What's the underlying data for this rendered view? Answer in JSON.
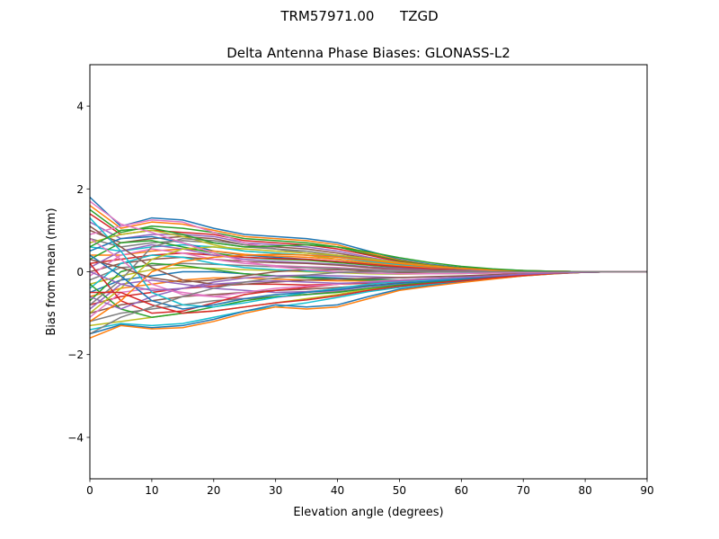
{
  "figure": {
    "suptitle_station": "TRM57971.00",
    "suptitle_site": "TZGD"
  },
  "chart_data": {
    "type": "line",
    "title": "Delta Antenna Phase Biases: GLONASS-L2",
    "xlabel": "Elevation angle (degrees)",
    "ylabel": "Bias from mean (mm)",
    "xlim": [
      0,
      90
    ],
    "ylim": [
      -5,
      5
    ],
    "xticks": [
      0,
      10,
      20,
      30,
      40,
      50,
      60,
      70,
      80,
      90
    ],
    "yticks": [
      -4,
      -2,
      0,
      2,
      4
    ],
    "ytick_labels": [
      "−4",
      "−2",
      "0",
      "2",
      "4"
    ],
    "grid": false,
    "x": [
      0,
      5,
      10,
      15,
      20,
      25,
      30,
      35,
      40,
      45,
      50,
      55,
      60,
      65,
      70,
      75,
      80,
      85,
      90
    ],
    "colors": [
      "#1f77b4",
      "#ff7f0e",
      "#2ca02c",
      "#d62728",
      "#9467bd",
      "#8c564b",
      "#e377c2",
      "#7f7f7f",
      "#bcbd22",
      "#17becf"
    ],
    "series": [
      {
        "values": [
          1.8,
          1.1,
          1.3,
          1.25,
          1.05,
          0.9,
          0.85,
          0.8,
          0.7,
          0.5,
          0.3,
          0.18,
          0.1,
          0.06,
          0.03,
          0.01,
          0.0,
          0.0,
          0.0
        ]
      },
      {
        "values": [
          1.6,
          1.05,
          1.2,
          1.15,
          1.0,
          0.85,
          0.8,
          0.75,
          0.65,
          0.45,
          0.28,
          0.16,
          0.09,
          0.05,
          0.03,
          0.01,
          0.0,
          0.0,
          0.0
        ]
      },
      {
        "values": [
          1.5,
          0.95,
          1.1,
          1.05,
          0.95,
          0.8,
          0.75,
          0.7,
          0.6,
          0.42,
          0.26,
          0.15,
          0.09,
          0.05,
          0.02,
          0.01,
          0.0,
          0.0,
          0.0
        ]
      },
      {
        "values": [
          1.4,
          0.9,
          1.0,
          0.95,
          0.9,
          0.75,
          0.7,
          0.65,
          0.55,
          0.4,
          0.24,
          0.14,
          0.08,
          0.04,
          0.02,
          0.01,
          0.0,
          0.0,
          0.0
        ]
      },
      {
        "values": [
          1.2,
          0.8,
          0.9,
          0.9,
          0.85,
          0.7,
          0.65,
          0.6,
          0.5,
          0.35,
          0.22,
          0.13,
          0.07,
          0.04,
          0.02,
          0.01,
          0.0,
          0.0,
          0.0
        ]
      },
      {
        "values": [
          1.0,
          0.7,
          0.8,
          0.85,
          0.8,
          0.65,
          0.6,
          0.55,
          0.45,
          0.32,
          0.2,
          0.12,
          0.07,
          0.04,
          0.02,
          0.01,
          0.0,
          0.0,
          0.0
        ]
      },
      {
        "values": [
          0.9,
          1.1,
          1.25,
          1.2,
          0.95,
          0.7,
          0.55,
          0.45,
          0.35,
          0.25,
          0.15,
          0.09,
          0.05,
          0.03,
          0.02,
          0.01,
          0.0,
          0.0,
          0.0
        ]
      },
      {
        "values": [
          0.8,
          0.6,
          0.7,
          0.75,
          0.7,
          0.6,
          0.55,
          0.5,
          0.4,
          0.28,
          0.18,
          0.11,
          0.06,
          0.04,
          0.02,
          0.01,
          0.0,
          0.0,
          0.0
        ]
      },
      {
        "values": [
          0.7,
          0.9,
          1.0,
          0.85,
          0.65,
          0.5,
          0.45,
          0.4,
          0.3,
          0.2,
          0.13,
          0.08,
          0.05,
          0.03,
          0.01,
          0.01,
          0.0,
          0.0,
          0.0
        ]
      },
      {
        "values": [
          0.6,
          0.5,
          0.6,
          0.65,
          0.6,
          0.5,
          0.45,
          0.4,
          0.35,
          0.25,
          0.16,
          0.1,
          0.06,
          0.03,
          0.02,
          0.01,
          0.0,
          0.0,
          0.0
        ]
      },
      {
        "values": [
          0.5,
          0.8,
          0.85,
          0.7,
          0.5,
          0.4,
          0.35,
          0.3,
          0.25,
          0.18,
          0.12,
          0.07,
          0.04,
          0.02,
          0.01,
          0.0,
          0.0,
          0.0,
          0.0
        ]
      },
      {
        "values": [
          0.4,
          0.4,
          0.5,
          0.55,
          0.5,
          0.42,
          0.38,
          0.35,
          0.3,
          0.22,
          0.14,
          0.09,
          0.05,
          0.03,
          0.02,
          0.01,
          0.0,
          0.0,
          0.0
        ]
      },
      {
        "values": [
          0.3,
          0.7,
          0.75,
          0.6,
          0.45,
          0.35,
          0.3,
          0.28,
          0.22,
          0.16,
          0.1,
          0.06,
          0.04,
          0.02,
          0.01,
          0.0,
          0.0,
          0.0,
          0.0
        ]
      },
      {
        "values": [
          0.2,
          0.3,
          0.4,
          0.45,
          0.4,
          0.35,
          0.32,
          0.3,
          0.25,
          0.18,
          0.12,
          0.07,
          0.04,
          0.02,
          0.01,
          0.0,
          0.0,
          0.0,
          0.0
        ]
      },
      {
        "values": [
          0.1,
          0.5,
          0.65,
          0.55,
          0.4,
          0.3,
          0.25,
          0.22,
          0.18,
          0.12,
          0.08,
          0.05,
          0.03,
          0.02,
          0.01,
          0.0,
          0.0,
          0.0,
          0.0
        ]
      },
      {
        "values": [
          0.0,
          0.2,
          0.3,
          0.35,
          0.3,
          0.25,
          0.22,
          0.2,
          0.16,
          0.1,
          0.06,
          0.04,
          0.02,
          0.01,
          0.01,
          0.0,
          0.0,
          0.0,
          0.0
        ]
      },
      {
        "values": [
          -0.1,
          0.4,
          0.55,
          0.45,
          0.3,
          0.2,
          0.15,
          0.12,
          0.1,
          0.06,
          0.04,
          0.02,
          0.01,
          0.01,
          0.0,
          0.0,
          0.0,
          0.0,
          0.0
        ]
      },
      {
        "values": [
          -0.2,
          0.1,
          0.15,
          0.2,
          0.18,
          0.15,
          0.12,
          0.1,
          0.08,
          0.05,
          0.03,
          0.02,
          0.01,
          0.0,
          0.0,
          0.0,
          0.0,
          0.0,
          0.0
        ]
      },
      {
        "values": [
          -0.3,
          -0.1,
          0.05,
          0.1,
          0.08,
          0.05,
          0.03,
          0.0,
          -0.02,
          -0.05,
          -0.06,
          -0.05,
          -0.04,
          -0.03,
          -0.02,
          -0.01,
          0.0,
          0.0,
          0.0
        ]
      },
      {
        "values": [
          -0.4,
          0.2,
          0.4,
          0.35,
          0.2,
          0.1,
          0.05,
          0.02,
          0.0,
          -0.03,
          -0.05,
          -0.04,
          -0.03,
          -0.02,
          -0.01,
          0.0,
          0.0,
          0.0,
          0.0
        ]
      },
      {
        "values": [
          -0.5,
          -0.2,
          -0.1,
          0.0,
          0.0,
          -0.05,
          -0.1,
          -0.12,
          -0.15,
          -0.18,
          -0.2,
          -0.18,
          -0.15,
          -0.1,
          -0.06,
          -0.03,
          -0.01,
          0.0,
          0.0
        ]
      },
      {
        "values": [
          -0.6,
          -0.4,
          -0.3,
          -0.2,
          -0.15,
          -0.15,
          -0.18,
          -0.2,
          -0.22,
          -0.22,
          -0.22,
          -0.2,
          -0.16,
          -0.11,
          -0.07,
          -0.03,
          -0.01,
          0.0,
          0.0
        ]
      },
      {
        "values": [
          -0.7,
          0.0,
          0.2,
          0.15,
          0.05,
          -0.05,
          -0.1,
          -0.15,
          -0.18,
          -0.2,
          -0.2,
          -0.18,
          -0.14,
          -0.1,
          -0.06,
          -0.03,
          -0.01,
          0.0,
          0.0
        ]
      },
      {
        "values": [
          -0.8,
          -0.6,
          -0.5,
          -0.4,
          -0.35,
          -0.3,
          -0.3,
          -0.32,
          -0.3,
          -0.28,
          -0.26,
          -0.24,
          -0.2,
          -0.14,
          -0.08,
          -0.04,
          -0.01,
          0.0,
          0.0
        ]
      },
      {
        "values": [
          -0.9,
          -0.3,
          -0.2,
          -0.3,
          -0.4,
          -0.45,
          -0.5,
          -0.48,
          -0.42,
          -0.35,
          -0.3,
          -0.26,
          -0.22,
          -0.15,
          -0.09,
          -0.04,
          -0.01,
          0.0,
          0.0
        ]
      },
      {
        "values": [
          -1.0,
          -0.8,
          -0.7,
          -0.6,
          -0.55,
          -0.5,
          -0.45,
          -0.42,
          -0.38,
          -0.33,
          -0.28,
          -0.24,
          -0.2,
          -0.14,
          -0.08,
          -0.04,
          -0.01,
          0.0,
          0.0
        ]
      },
      {
        "values": [
          -1.1,
          -0.5,
          -0.4,
          -0.5,
          -0.6,
          -0.65,
          -0.62,
          -0.55,
          -0.45,
          -0.36,
          -0.3,
          -0.25,
          -0.2,
          -0.14,
          -0.08,
          -0.04,
          -0.01,
          0.0,
          0.0
        ]
      },
      {
        "values": [
          -1.2,
          -1.0,
          -0.9,
          -0.8,
          -0.7,
          -0.65,
          -0.6,
          -0.55,
          -0.48,
          -0.4,
          -0.32,
          -0.26,
          -0.21,
          -0.15,
          -0.09,
          -0.04,
          -0.01,
          0.0,
          0.0
        ]
      },
      {
        "values": [
          -1.3,
          -1.2,
          -1.1,
          -1.0,
          -0.95,
          -0.85,
          -0.75,
          -0.65,
          -0.55,
          -0.42,
          -0.34,
          -0.27,
          -0.21,
          -0.15,
          -0.09,
          -0.04,
          -0.01,
          0.0,
          0.0
        ]
      },
      {
        "values": [
          -1.4,
          -1.25,
          -1.3,
          -1.25,
          -1.1,
          -0.95,
          -0.85,
          -0.75,
          -0.62,
          -0.48,
          -0.38,
          -0.3,
          -0.23,
          -0.16,
          -0.09,
          -0.04,
          -0.01,
          0.0,
          0.0
        ]
      },
      {
        "values": [
          -1.5,
          -1.28,
          -1.35,
          -1.3,
          -1.15,
          -0.95,
          -0.8,
          -0.85,
          -0.8,
          -0.6,
          -0.42,
          -0.33,
          -0.25,
          -0.17,
          -0.1,
          -0.05,
          -0.01,
          0.0,
          0.0
        ]
      },
      {
        "values": [
          -1.6,
          -1.3,
          -1.38,
          -1.35,
          -1.2,
          -1.0,
          -0.85,
          -0.9,
          -0.85,
          -0.65,
          -0.45,
          -0.35,
          -0.26,
          -0.18,
          -0.1,
          -0.05,
          -0.01,
          0.0,
          0.0
        ]
      },
      {
        "values": [
          -0.3,
          -0.9,
          -1.1,
          -1.0,
          -0.85,
          -0.7,
          -0.6,
          -0.55,
          -0.5,
          -0.4,
          -0.32,
          -0.26,
          -0.2,
          -0.14,
          -0.08,
          -0.04,
          -0.01,
          0.0,
          0.0
        ]
      },
      {
        "values": [
          0.2,
          -0.7,
          -1.0,
          -0.95,
          -0.75,
          -0.55,
          -0.45,
          -0.38,
          -0.3,
          -0.25,
          -0.22,
          -0.19,
          -0.16,
          -0.11,
          -0.06,
          -0.03,
          -0.01,
          0.0,
          0.0
        ]
      },
      {
        "values": [
          -0.6,
          -0.9,
          -0.6,
          -0.4,
          -0.25,
          -0.15,
          -0.1,
          -0.08,
          -0.1,
          -0.12,
          -0.14,
          -0.13,
          -0.11,
          -0.08,
          -0.05,
          -0.02,
          -0.01,
          0.0,
          0.0
        ]
      },
      {
        "values": [
          1.1,
          0.6,
          0.1,
          -0.2,
          -0.3,
          -0.3,
          -0.25,
          -0.2,
          -0.18,
          -0.16,
          -0.14,
          -0.12,
          -0.1,
          -0.07,
          -0.04,
          -0.02,
          -0.01,
          0.0,
          0.0
        ]
      },
      {
        "values": [
          0.8,
          0.3,
          -0.3,
          -0.55,
          -0.6,
          -0.5,
          -0.4,
          -0.35,
          -0.3,
          -0.24,
          -0.2,
          -0.17,
          -0.14,
          -0.1,
          -0.06,
          -0.03,
          -0.01,
          0.0,
          0.0
        ]
      },
      {
        "values": [
          -0.8,
          -0.2,
          0.6,
          0.8,
          0.75,
          0.65,
          0.55,
          0.45,
          0.38,
          0.3,
          0.2,
          0.12,
          0.07,
          0.04,
          0.02,
          0.01,
          0.0,
          0.0,
          0.0
        ]
      },
      {
        "values": [
          -1.0,
          -0.4,
          0.3,
          0.55,
          0.6,
          0.55,
          0.5,
          0.45,
          0.4,
          0.32,
          0.22,
          0.14,
          0.08,
          0.04,
          0.02,
          0.01,
          0.0,
          0.0,
          0.0
        ]
      },
      {
        "values": [
          1.3,
          0.5,
          -0.5,
          -0.8,
          -0.85,
          -0.75,
          -0.62,
          -0.5,
          -0.4,
          -0.3,
          -0.24,
          -0.2,
          -0.16,
          -0.11,
          -0.06,
          -0.03,
          -0.01,
          0.0,
          0.0
        ]
      },
      {
        "values": [
          0.4,
          -0.1,
          -0.7,
          -0.9,
          -0.8,
          -0.65,
          -0.55,
          -0.5,
          -0.44,
          -0.35,
          -0.28,
          -0.23,
          -0.18,
          -0.12,
          -0.07,
          -0.03,
          -0.01,
          0.0,
          0.0
        ]
      },
      {
        "values": [
          -1.2,
          -0.7,
          0.0,
          0.25,
          0.35,
          0.4,
          0.42,
          0.4,
          0.35,
          0.28,
          0.2,
          0.13,
          0.08,
          0.04,
          0.02,
          0.01,
          0.0,
          0.0,
          0.0
        ]
      },
      {
        "values": [
          0.6,
          1.0,
          1.05,
          0.9,
          0.7,
          0.6,
          0.62,
          0.65,
          0.6,
          0.48,
          0.34,
          0.22,
          0.13,
          0.07,
          0.03,
          0.01,
          0.0,
          0.0,
          0.0
        ]
      },
      {
        "values": [
          -0.5,
          -0.5,
          -0.8,
          -1.0,
          -0.95,
          -0.85,
          -0.75,
          -0.68,
          -0.58,
          -0.45,
          -0.35,
          -0.28,
          -0.22,
          -0.15,
          -0.09,
          -0.04,
          -0.01,
          0.0,
          0.0
        ]
      },
      {
        "values": [
          0.0,
          -0.3,
          -0.45,
          -0.4,
          -0.3,
          -0.25,
          -0.22,
          -0.25,
          -0.28,
          -0.26,
          -0.22,
          -0.18,
          -0.14,
          -0.1,
          -0.06,
          -0.03,
          -0.01,
          0.0,
          0.0
        ]
      },
      {
        "values": [
          0.3,
          0.1,
          -0.15,
          -0.25,
          -0.2,
          -0.1,
          0.0,
          0.05,
          0.05,
          0.02,
          -0.02,
          -0.04,
          -0.04,
          -0.03,
          -0.02,
          -0.01,
          0.0,
          0.0,
          0.0
        ]
      },
      {
        "values": [
          1.7,
          1.15,
          0.95,
          0.7,
          0.45,
          0.25,
          0.12,
          0.05,
          0.0,
          -0.03,
          -0.05,
          -0.05,
          -0.04,
          -0.03,
          -0.02,
          -0.01,
          0.0,
          0.0,
          0.0
        ]
      },
      {
        "values": [
          -1.5,
          -1.1,
          -0.85,
          -0.6,
          -0.4,
          -0.25,
          -0.15,
          -0.08,
          -0.02,
          0.0,
          0.0,
          0.0,
          0.0,
          0.0,
          0.0,
          0.0,
          0.0,
          0.0,
          0.0
        ]
      }
    ]
  }
}
